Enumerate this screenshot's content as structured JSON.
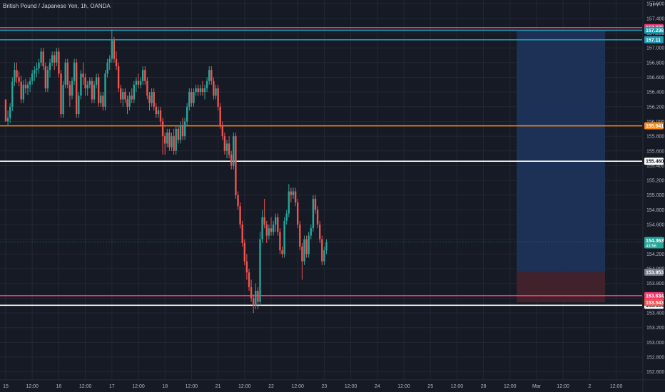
{
  "header": {
    "symbol_title": "British Pound / Japanese Yen, 1h, OANDA",
    "currency": "JPY"
  },
  "colors": {
    "background": "#161a25",
    "grid": "#232733",
    "text": "#b2b5be",
    "up": "#26a69a",
    "down": "#ef5350",
    "pink_line": "#f23670",
    "cyan_line": "#1e9bb1",
    "orange_line": "#f5891f",
    "white_line": "#ffffff",
    "target_zone": "#1d3157",
    "stop_zone": "#43222b",
    "current_price": "#26a69a"
  },
  "chart_data": {
    "type": "candlestick",
    "title": "British Pound / Japanese Yen, 1h, OANDA",
    "ylim": [
      152.5,
      157.65
    ],
    "grid": true,
    "price_axis": {
      "ticks": [
        "157.600",
        "157.400",
        "157.200",
        "157.000",
        "156.800",
        "156.600",
        "156.400",
        "156.200",
        "156.000",
        "155.800",
        "155.600",
        "155.400",
        "155.200",
        "155.000",
        "154.800",
        "154.600",
        "154.400",
        "154.200",
        "154.000",
        "153.800",
        "153.600",
        "153.400",
        "153.200",
        "153.000",
        "152.800",
        "152.600"
      ],
      "tick_values": [
        157.6,
        157.4,
        157.2,
        157.0,
        156.8,
        156.6,
        156.4,
        156.2,
        156.0,
        155.8,
        155.6,
        155.4,
        155.2,
        155.0,
        154.8,
        154.6,
        154.4,
        154.2,
        154.0,
        153.8,
        153.6,
        153.4,
        153.2,
        153.0,
        152.8,
        152.6
      ]
    },
    "time_axis": {
      "labels": [
        "15",
        "12:00",
        "16",
        "12:00",
        "17",
        "12:00",
        "18",
        "12:00",
        "21",
        "12:00",
        "22",
        "12:00",
        "23",
        "12:00",
        "24",
        "12:00",
        "25",
        "12:00",
        "28",
        "12:00",
        "Mar",
        "12:00",
        "2",
        "12:00"
      ],
      "bar_index": [
        0,
        12,
        24,
        36,
        48,
        60,
        72,
        84,
        96,
        108,
        120,
        132,
        144,
        156,
        168,
        180,
        192,
        204,
        216,
        228,
        240,
        252,
        264,
        276
      ]
    },
    "horizontal_lines": [
      {
        "price": 157.275,
        "label": "157.275",
        "color": "#f23670"
      },
      {
        "price": 157.239,
        "label": "157.239",
        "color": "#1e9bb1"
      },
      {
        "price": 157.11,
        "label": "157.11",
        "color": "#1e9bb1"
      },
      {
        "price": 155.941,
        "label": "155.941",
        "color": "#f5891f"
      },
      {
        "price": 155.46,
        "label": "155.460",
        "color": "#ffffff"
      },
      {
        "price": 153.634,
        "label": "153.634",
        "color": "#f23670"
      },
      {
        "price": 153.504,
        "label": "153.504",
        "color": "#ffffff"
      }
    ],
    "position": {
      "entry": 153.953,
      "entry_label": "153.953",
      "target": 157.239,
      "stop": 153.543,
      "stop_label": "153.543",
      "start_bar": 231,
      "end_bar": 271
    },
    "current_price": {
      "price": 154.363,
      "label": "154.363",
      "countdown": "43:56"
    },
    "ohlc": [
      [
        156.3,
        156.3,
        156.0,
        156.0
      ],
      [
        156.0,
        156.15,
        155.95,
        156.05
      ],
      [
        156.05,
        156.25,
        155.98,
        156.2
      ],
      [
        156.2,
        156.6,
        156.14,
        156.54
      ],
      [
        156.54,
        156.8,
        156.48,
        156.7
      ],
      [
        156.7,
        156.8,
        156.52,
        156.6
      ],
      [
        156.6,
        156.68,
        156.48,
        156.54
      ],
      [
        156.54,
        156.62,
        156.25,
        156.3
      ],
      [
        156.3,
        156.56,
        156.25,
        156.5
      ],
      [
        156.5,
        156.58,
        156.38,
        156.45
      ],
      [
        156.45,
        156.54,
        156.36,
        156.5
      ],
      [
        156.5,
        156.6,
        156.4,
        156.55
      ],
      [
        156.55,
        156.7,
        156.5,
        156.65
      ],
      [
        156.65,
        156.75,
        156.55,
        156.7
      ],
      [
        156.7,
        156.8,
        156.6,
        156.72
      ],
      [
        156.72,
        156.85,
        156.65,
        156.8
      ],
      [
        156.8,
        157.0,
        156.75,
        156.95
      ],
      [
        156.95,
        157.0,
        156.7,
        156.75
      ],
      [
        156.75,
        156.8,
        156.4,
        156.45
      ],
      [
        156.45,
        156.75,
        156.4,
        156.7
      ],
      [
        156.7,
        156.85,
        156.6,
        156.8
      ],
      [
        156.8,
        156.95,
        156.75,
        156.9
      ],
      [
        156.9,
        156.95,
        156.7,
        156.8
      ],
      [
        156.8,
        157.0,
        156.75,
        156.95
      ],
      [
        156.95,
        157.0,
        156.6,
        156.65
      ],
      [
        156.65,
        156.7,
        156.05,
        156.1
      ],
      [
        156.1,
        156.55,
        156.05,
        156.5
      ],
      [
        156.5,
        156.85,
        156.45,
        156.8
      ],
      [
        156.8,
        156.85,
        156.45,
        156.5
      ],
      [
        156.5,
        156.55,
        156.2,
        156.35
      ],
      [
        156.35,
        156.6,
        156.3,
        156.55
      ],
      [
        156.55,
        156.85,
        156.5,
        156.8
      ],
      [
        156.8,
        156.85,
        156.05,
        156.1
      ],
      [
        156.1,
        156.4,
        156.05,
        156.35
      ],
      [
        156.35,
        156.7,
        156.3,
        156.65
      ],
      [
        156.65,
        156.8,
        156.5,
        156.6
      ],
      [
        156.6,
        156.65,
        156.35,
        156.45
      ],
      [
        156.45,
        156.55,
        156.35,
        156.5
      ],
      [
        156.5,
        156.6,
        156.45,
        156.55
      ],
      [
        156.55,
        156.6,
        156.25,
        156.3
      ],
      [
        156.3,
        156.55,
        156.25,
        156.5
      ],
      [
        156.5,
        156.65,
        156.45,
        156.6
      ],
      [
        156.6,
        156.65,
        156.2,
        156.25
      ],
      [
        156.25,
        156.4,
        156.2,
        156.35
      ],
      [
        156.35,
        156.4,
        156.15,
        156.2
      ],
      [
        156.2,
        156.7,
        156.15,
        156.65
      ],
      [
        156.65,
        156.85,
        156.6,
        156.8
      ],
      [
        156.8,
        156.9,
        156.7,
        156.85
      ],
      [
        156.85,
        157.25,
        156.8,
        157.1
      ],
      [
        157.1,
        157.15,
        156.8,
        156.85
      ],
      [
        156.85,
        156.95,
        156.7,
        156.75
      ],
      [
        156.75,
        156.8,
        156.4,
        156.45
      ],
      [
        156.45,
        156.5,
        156.25,
        156.3
      ],
      [
        156.3,
        156.45,
        156.2,
        156.4
      ],
      [
        156.4,
        156.45,
        156.25,
        156.3
      ],
      [
        156.3,
        156.35,
        156.1,
        156.2
      ],
      [
        156.2,
        156.4,
        156.15,
        156.35
      ],
      [
        156.35,
        156.45,
        156.25,
        156.3
      ],
      [
        156.3,
        156.55,
        156.25,
        156.5
      ],
      [
        156.5,
        156.6,
        156.4,
        156.55
      ],
      [
        156.55,
        156.65,
        156.45,
        156.5
      ],
      [
        156.5,
        156.6,
        156.45,
        156.55
      ],
      [
        156.55,
        156.75,
        156.5,
        156.7
      ],
      [
        156.7,
        156.75,
        156.5,
        156.55
      ],
      [
        156.55,
        156.6,
        156.3,
        156.35
      ],
      [
        156.35,
        156.4,
        156.15,
        156.25
      ],
      [
        156.25,
        156.45,
        156.2,
        156.4
      ],
      [
        156.4,
        156.45,
        156.15,
        156.2
      ],
      [
        156.2,
        156.25,
        156.05,
        156.1
      ],
      [
        156.1,
        156.2,
        156.05,
        156.15
      ],
      [
        156.15,
        156.2,
        155.95,
        156.0
      ],
      [
        156.0,
        156.05,
        155.55,
        155.8
      ],
      [
        155.8,
        155.85,
        155.55,
        155.7
      ],
      [
        155.7,
        155.9,
        155.65,
        155.85
      ],
      [
        155.85,
        155.9,
        155.6,
        155.65
      ],
      [
        155.65,
        155.85,
        155.6,
        155.8
      ],
      [
        155.8,
        155.9,
        155.55,
        155.6
      ],
      [
        155.6,
        155.95,
        155.55,
        155.9
      ],
      [
        155.9,
        155.95,
        155.7,
        155.75
      ],
      [
        155.75,
        156.0,
        155.7,
        155.95
      ],
      [
        155.95,
        156.05,
        155.75,
        155.8
      ],
      [
        155.8,
        156.05,
        155.75,
        156.0
      ],
      [
        156.0,
        156.25,
        155.95,
        156.2
      ],
      [
        156.2,
        156.45,
        156.15,
        156.4
      ],
      [
        156.4,
        156.45,
        156.2,
        156.25
      ],
      [
        156.25,
        156.45,
        156.2,
        156.4
      ],
      [
        156.4,
        156.5,
        156.35,
        156.45
      ],
      [
        156.45,
        156.5,
        156.35,
        156.4
      ],
      [
        156.4,
        156.5,
        156.35,
        156.45
      ],
      [
        156.45,
        156.55,
        156.35,
        156.4
      ],
      [
        156.4,
        156.5,
        156.3,
        156.45
      ],
      [
        156.45,
        156.6,
        156.4,
        156.55
      ],
      [
        156.55,
        156.75,
        156.5,
        156.7
      ],
      [
        156.7,
        156.75,
        156.5,
        156.55
      ],
      [
        156.55,
        156.6,
        156.3,
        156.35
      ],
      [
        156.35,
        156.5,
        156.3,
        156.45
      ],
      [
        156.45,
        156.5,
        156.15,
        156.2
      ],
      [
        156.2,
        156.25,
        155.9,
        155.95
      ],
      [
        155.95,
        156.0,
        155.75,
        155.8
      ],
      [
        155.8,
        155.85,
        155.55,
        155.6
      ],
      [
        155.6,
        155.75,
        155.5,
        155.7
      ],
      [
        155.7,
        155.8,
        155.5,
        155.55
      ],
      [
        155.55,
        155.6,
        155.35,
        155.4
      ],
      [
        155.4,
        155.85,
        155.35,
        155.8
      ],
      [
        155.8,
        155.85,
        154.95,
        155.0
      ],
      [
        155.0,
        155.05,
        154.8,
        154.85
      ],
      [
        154.85,
        154.9,
        154.55,
        154.6
      ],
      [
        154.6,
        154.65,
        154.3,
        154.35
      ],
      [
        154.35,
        154.4,
        154.05,
        154.1
      ],
      [
        154.1,
        154.2,
        153.85,
        153.95
      ],
      [
        153.95,
        154.0,
        153.7,
        153.75
      ],
      [
        153.75,
        153.85,
        153.55,
        153.6
      ],
      [
        153.6,
        153.65,
        153.4,
        153.5
      ],
      [
        153.5,
        153.8,
        153.45,
        153.7
      ],
      [
        153.7,
        153.75,
        153.45,
        153.55
      ],
      [
        153.55,
        154.5,
        153.5,
        154.4
      ],
      [
        154.4,
        154.8,
        154.35,
        154.7
      ],
      [
        154.7,
        154.95,
        154.55,
        154.6
      ],
      [
        154.6,
        154.65,
        154.35,
        154.45
      ],
      [
        154.45,
        154.6,
        154.4,
        154.55
      ],
      [
        154.55,
        154.7,
        154.45,
        154.5
      ],
      [
        154.5,
        154.65,
        154.45,
        154.6
      ],
      [
        154.6,
        154.75,
        154.5,
        154.7
      ],
      [
        154.7,
        154.75,
        154.45,
        154.5
      ],
      [
        154.5,
        154.55,
        154.2,
        154.25
      ],
      [
        154.25,
        154.3,
        154.15,
        154.2
      ],
      [
        154.2,
        154.7,
        154.15,
        154.65
      ],
      [
        154.65,
        154.8,
        154.6,
        154.75
      ],
      [
        154.75,
        155.15,
        154.7,
        155.05
      ],
      [
        155.05,
        155.1,
        154.9,
        155.0
      ],
      [
        155.0,
        155.1,
        154.95,
        155.05
      ],
      [
        155.05,
        155.1,
        154.85,
        154.9
      ],
      [
        154.9,
        154.95,
        154.55,
        154.6
      ],
      [
        154.6,
        154.65,
        154.25,
        154.3
      ],
      [
        154.3,
        154.35,
        153.85,
        154.1
      ],
      [
        154.1,
        154.45,
        154.05,
        154.4
      ],
      [
        154.4,
        154.45,
        154.15,
        154.2
      ],
      [
        154.2,
        154.5,
        154.15,
        154.45
      ],
      [
        154.45,
        154.6,
        154.4,
        154.55
      ],
      [
        154.55,
        155.0,
        154.5,
        154.95
      ],
      [
        154.95,
        155.0,
        154.75,
        154.8
      ],
      [
        154.8,
        154.85,
        154.55,
        154.6
      ],
      [
        154.6,
        154.65,
        154.35,
        154.4
      ],
      [
        154.4,
        154.45,
        154.05,
        154.1
      ],
      [
        154.1,
        154.3,
        154.05,
        154.25
      ],
      [
        154.25,
        154.4,
        154.2,
        154.36
      ]
    ]
  }
}
